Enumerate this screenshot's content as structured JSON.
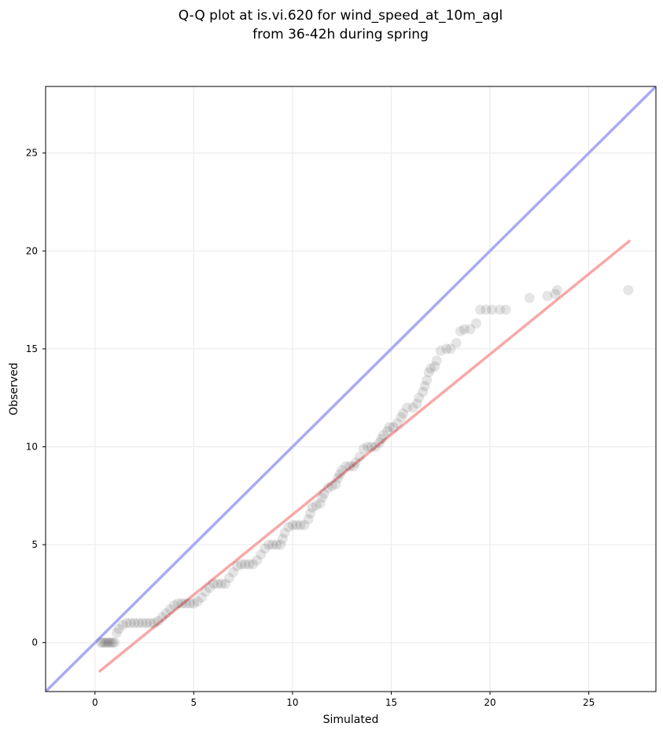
{
  "chart_data": {
    "type": "scatter",
    "title": [
      "Q-Q plot at is.vi.620 for wind_speed_at_10m_agl",
      "from 36-42h during spring"
    ],
    "xlabel": "Simulated",
    "ylabel": "Observed",
    "xlim": [
      -2.5,
      28.4
    ],
    "ylim": [
      -2.5,
      28.4
    ],
    "xticks": [
      0,
      5,
      10,
      15,
      20,
      25
    ],
    "yticks": [
      0,
      5,
      10,
      15,
      20,
      25
    ],
    "grid": true,
    "reference_line": {
      "label": "1:1",
      "slope": 1,
      "intercept": 0,
      "color": "#aaaaf4"
    },
    "fit_line": {
      "x": [
        0.25,
        27.05
      ],
      "y": [
        -1.45,
        20.5
      ],
      "color": "#f7a8a8"
    },
    "point_color": "#000000",
    "points": [
      [
        0.3,
        0
      ],
      [
        0.4,
        0
      ],
      [
        0.5,
        0
      ],
      [
        0.6,
        0
      ],
      [
        0.7,
        0
      ],
      [
        0.8,
        0
      ],
      [
        0.9,
        0
      ],
      [
        1.0,
        0
      ],
      [
        1.1,
        0.5
      ],
      [
        1.2,
        0.7
      ],
      [
        1.4,
        0.9
      ],
      [
        1.6,
        1
      ],
      [
        1.8,
        1
      ],
      [
        2.0,
        1
      ],
      [
        2.2,
        1
      ],
      [
        2.4,
        1
      ],
      [
        2.6,
        1
      ],
      [
        2.8,
        1
      ],
      [
        3.0,
        1
      ],
      [
        3.2,
        1.1
      ],
      [
        3.4,
        1.3
      ],
      [
        3.6,
        1.5
      ],
      [
        3.8,
        1.7
      ],
      [
        4.0,
        1.9
      ],
      [
        4.2,
        2
      ],
      [
        4.4,
        2
      ],
      [
        4.6,
        2
      ],
      [
        4.8,
        2
      ],
      [
        5.0,
        2
      ],
      [
        5.2,
        2.1
      ],
      [
        5.4,
        2.3
      ],
      [
        5.6,
        2.6
      ],
      [
        5.8,
        2.8
      ],
      [
        6.0,
        3
      ],
      [
        6.2,
        3
      ],
      [
        6.4,
        3
      ],
      [
        6.6,
        3
      ],
      [
        6.8,
        3.3
      ],
      [
        7.0,
        3.6
      ],
      [
        7.2,
        3.9
      ],
      [
        7.4,
        4
      ],
      [
        7.6,
        4
      ],
      [
        7.8,
        4
      ],
      [
        8.0,
        4
      ],
      [
        8.2,
        4.2
      ],
      [
        8.4,
        4.5
      ],
      [
        8.6,
        4.8
      ],
      [
        8.8,
        5
      ],
      [
        9.0,
        5
      ],
      [
        9.2,
        5
      ],
      [
        9.4,
        5
      ],
      [
        9.5,
        5.3
      ],
      [
        9.6,
        5.6
      ],
      [
        9.8,
        5.9
      ],
      [
        10.0,
        6
      ],
      [
        10.2,
        6
      ],
      [
        10.4,
        6
      ],
      [
        10.6,
        6
      ],
      [
        10.8,
        6.3
      ],
      [
        10.9,
        6.6
      ],
      [
        11.0,
        6.9
      ],
      [
        11.2,
        7
      ],
      [
        11.4,
        7.1
      ],
      [
        11.5,
        7.4
      ],
      [
        11.6,
        7.6
      ],
      [
        11.8,
        7.9
      ],
      [
        12.0,
        8
      ],
      [
        12.2,
        8.1
      ],
      [
        12.3,
        8.4
      ],
      [
        12.4,
        8.6
      ],
      [
        12.5,
        8.8
      ],
      [
        12.7,
        9
      ],
      [
        12.9,
        9
      ],
      [
        13.1,
        9
      ],
      [
        13.2,
        9.2
      ],
      [
        13.4,
        9.5
      ],
      [
        13.6,
        9.9
      ],
      [
        13.8,
        10
      ],
      [
        14.0,
        10
      ],
      [
        14.2,
        10
      ],
      [
        14.4,
        10.2
      ],
      [
        14.5,
        10.4
      ],
      [
        14.6,
        10.6
      ],
      [
        14.8,
        10.8
      ],
      [
        14.9,
        11
      ],
      [
        15.1,
        11
      ],
      [
        15.3,
        11.2
      ],
      [
        15.5,
        11.5
      ],
      [
        15.6,
        11.7
      ],
      [
        15.8,
        12
      ],
      [
        16.1,
        12
      ],
      [
        16.3,
        12.2
      ],
      [
        16.4,
        12.5
      ],
      [
        16.6,
        12.8
      ],
      [
        16.7,
        13.1
      ],
      [
        16.8,
        13.4
      ],
      [
        16.9,
        13.8
      ],
      [
        17.0,
        14
      ],
      [
        17.2,
        14.1
      ],
      [
        17.3,
        14.4
      ],
      [
        17.5,
        14.9
      ],
      [
        17.8,
        15
      ],
      [
        18.0,
        15
      ],
      [
        18.3,
        15.3
      ],
      [
        18.5,
        15.9
      ],
      [
        18.7,
        16
      ],
      [
        19.0,
        16
      ],
      [
        19.3,
        16.3
      ],
      [
        19.5,
        17
      ],
      [
        19.8,
        17
      ],
      [
        20.1,
        17
      ],
      [
        20.5,
        17
      ],
      [
        20.8,
        17
      ],
      [
        22.0,
        17.6
      ],
      [
        22.9,
        17.7
      ],
      [
        23.3,
        17.8
      ],
      [
        23.4,
        18
      ],
      [
        27.0,
        18
      ]
    ]
  }
}
